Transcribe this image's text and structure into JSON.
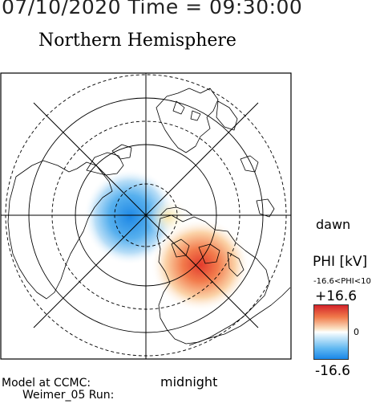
{
  "header": {
    "timestamp": "07/10/2020 Time = 09:30:00",
    "hemisphere_title": "Northern Hemisphere"
  },
  "map_labels": {
    "dawn": "dawn",
    "midnight": "midnight"
  },
  "legend": {
    "title": "PHI [kV]",
    "range_text": "-16.6<PHI<10",
    "max_label": "+16.6",
    "zero_label": "0",
    "min_label": "-16.6",
    "colors": {
      "high": "#d4232a",
      "mid": "#ffffff",
      "low": "#1a86e8"
    }
  },
  "footer": {
    "line1": "Model at CCMC:",
    "line2": "Weimer_05 Run:"
  }
}
